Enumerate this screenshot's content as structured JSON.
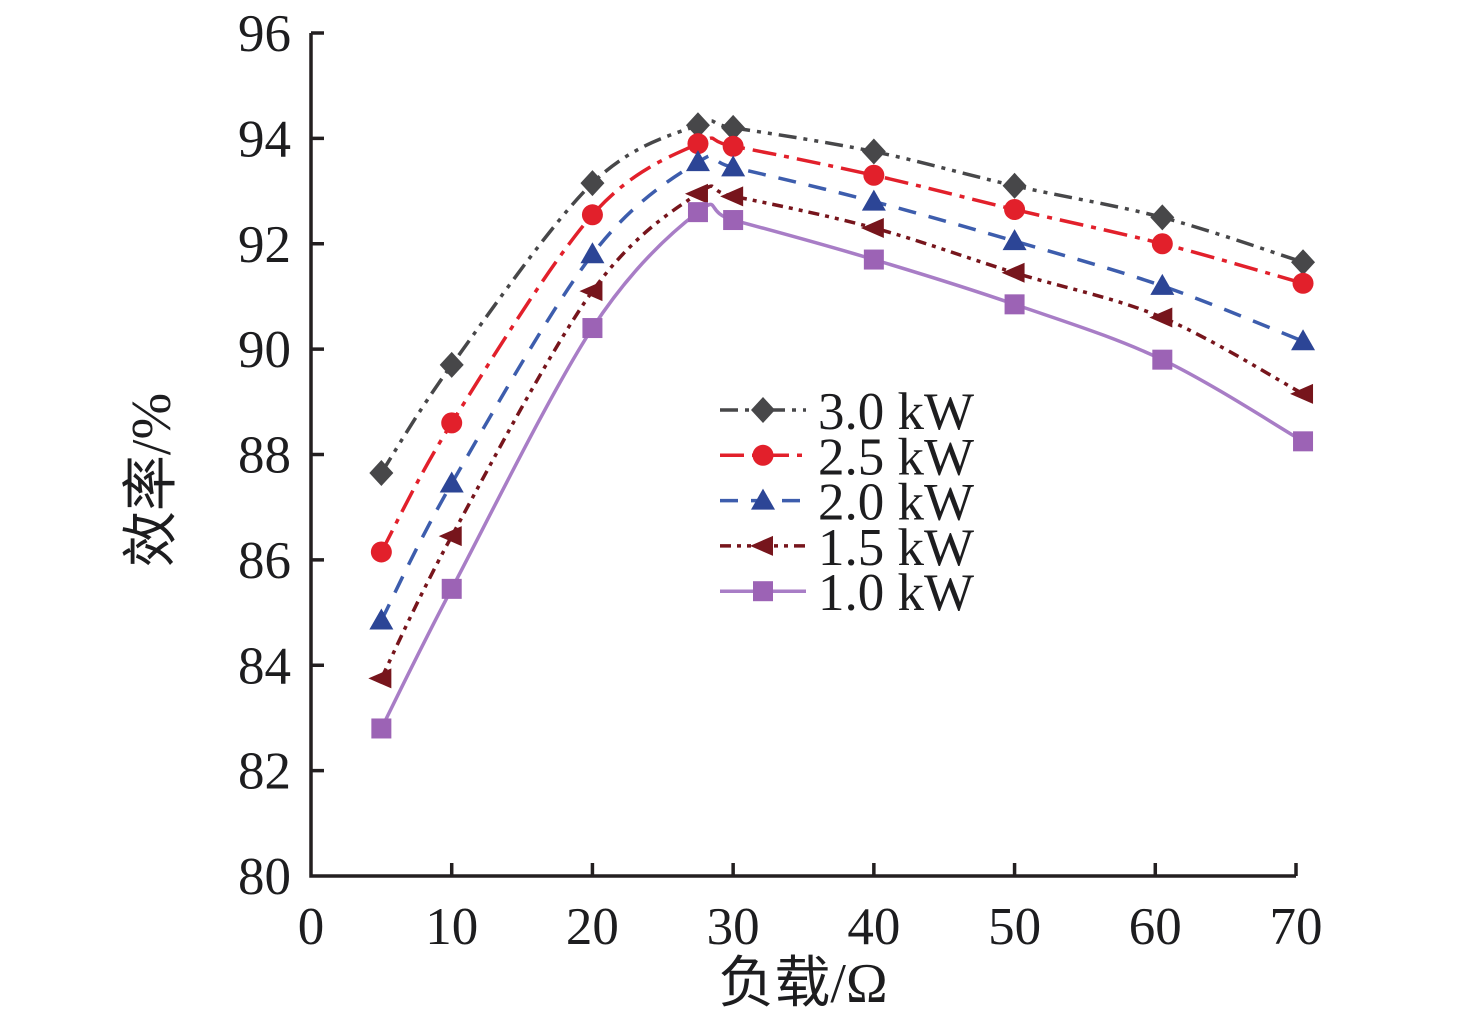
{
  "figure": {
    "background": "#ffffff",
    "axis_color": "#231f20"
  },
  "chart_data": {
    "type": "line",
    "title": "",
    "xlabel": "负载/Ω",
    "ylabel": "效率/%",
    "xlim": [
      0,
      70
    ],
    "ylim": [
      80,
      96
    ],
    "x_ticks": [
      0,
      10,
      20,
      30,
      40,
      50,
      60,
      70
    ],
    "y_ticks": [
      80,
      82,
      84,
      86,
      88,
      90,
      92,
      94,
      96
    ],
    "grid": false,
    "legend_position": "inside-center-right",
    "x": [
      5,
      10,
      20,
      27.5,
      30,
      40,
      50,
      60.5,
      70.5
    ],
    "series": [
      {
        "name": "3.0 kW",
        "color": "#474749",
        "marker": "diamond",
        "line_style": "dash-dot-dot",
        "values": [
          87.65,
          89.7,
          93.15,
          94.25,
          94.2,
          93.75,
          93.1,
          92.5,
          91.65
        ]
      },
      {
        "name": "2.5 kW",
        "color": "#e2202b",
        "marker": "circle",
        "line_style": "dash-dot",
        "values": [
          86.15,
          88.6,
          92.55,
          93.9,
          93.85,
          93.3,
          92.65,
          92.0,
          91.25
        ]
      },
      {
        "name": "2.0 kW",
        "color": "#2c4596",
        "line_color": "#3d5dad",
        "marker": "triangle-up",
        "line_style": "dashed",
        "values": [
          84.85,
          87.45,
          91.8,
          93.55,
          93.45,
          92.8,
          92.05,
          91.2,
          90.15
        ]
      },
      {
        "name": "1.5 kW",
        "color": "#77151c",
        "marker": "triangle-left",
        "line_style": "dense-dash-dot-dot",
        "values": [
          83.75,
          86.45,
          91.1,
          92.95,
          92.9,
          92.3,
          91.45,
          90.6,
          89.15
        ]
      },
      {
        "name": "1.0 kW",
        "color": "#9c63b5",
        "line_color": "#a87dc6",
        "marker": "square",
        "line_style": "solid",
        "values": [
          82.8,
          85.45,
          90.4,
          92.6,
          92.45,
          91.7,
          90.85,
          89.8,
          88.25
        ]
      }
    ]
  }
}
